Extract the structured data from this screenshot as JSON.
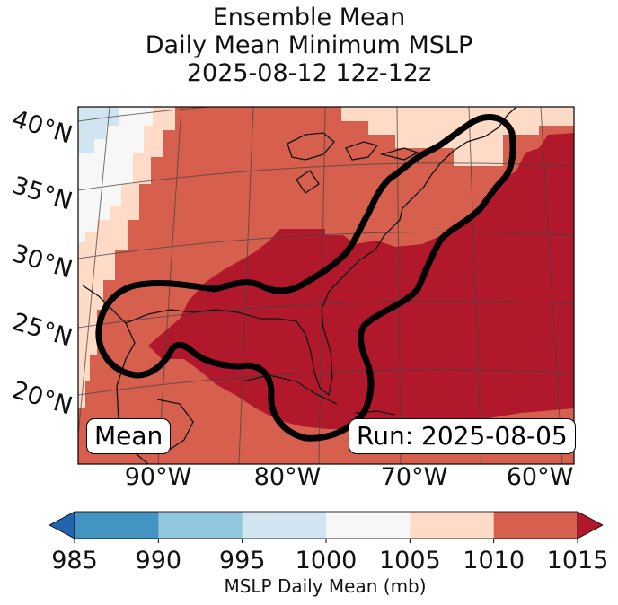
{
  "title": {
    "line1": "Ensemble Mean",
    "line2": "Daily Mean Minimum MSLP",
    "line3": "2025-08-12 12z-12z"
  },
  "map": {
    "lat_labels": [
      "40°N",
      "35°N",
      "30°N",
      "25°N",
      "20°N"
    ],
    "lon_labels": [
      "90°W",
      "80°W",
      "70°W",
      "60°W"
    ],
    "mean_label": "Mean",
    "run_label": "Run: 2025-08-05"
  },
  "colorbar": {
    "ticks": [
      "985",
      "990",
      "995",
      "1000",
      "1005",
      "1010",
      "1015"
    ],
    "label": "MSLP Daily Mean (mb)",
    "colors": [
      "#2166ac",
      "#4393c3",
      "#92c5de",
      "#d1e5f0",
      "#f7f7f7",
      "#fddbc7",
      "#d6604d",
      "#b2182b"
    ]
  },
  "chart_data": {
    "type": "heatmap",
    "title": "Ensemble Mean Daily Mean Minimum MSLP 2025-08-12 12z-12z",
    "variable": "MSLP Daily Mean (mb)",
    "bins": [
      {
        "range": "<985",
        "color": "#2166ac"
      },
      {
        "range": "985-990",
        "color": "#4393c3"
      },
      {
        "range": "990-995",
        "color": "#92c5de"
      },
      {
        "range": "995-1000",
        "color": "#d1e5f0"
      },
      {
        "range": "1000-1005",
        "color": "#f7f7f7"
      },
      {
        "range": "1005-1010",
        "color": "#fddbc7"
      },
      {
        "range": "1010-1015",
        "color": "#d6604d"
      },
      {
        "range": ">1015",
        "color": "#b2182b"
      }
    ],
    "lat_range": [
      17,
      41
    ],
    "lon_range": [
      -95,
      -59
    ]
  }
}
